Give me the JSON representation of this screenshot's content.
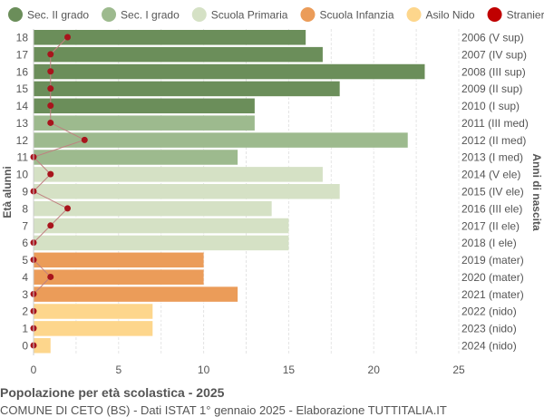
{
  "chart_data": {
    "type": "bar",
    "orientation": "horizontal",
    "title": "Popolazione per età scolastica - 2025",
    "subtitle": "COMUNE DI CETO (BS) - Dati ISTAT 1° gennaio 2025 - Elaborazione TUTTITALIA.IT",
    "ylabel": "Età alunni",
    "ylabel_right": "Anni di nascita",
    "xlim": [
      0,
      25
    ],
    "xticks": [
      0,
      5,
      10,
      15,
      20,
      25
    ],
    "grid": true,
    "legend_position": "top",
    "legend": [
      {
        "name": "Sec. II grado",
        "color": "#6b8e5a"
      },
      {
        "name": "Sec. I grado",
        "color": "#9dba8e"
      },
      {
        "name": "Scuola Primaria",
        "color": "#d5e1c5"
      },
      {
        "name": "Scuola Infanzia",
        "color": "#eb9c59"
      },
      {
        "name": "Asilo Nido",
        "color": "#fdd68c"
      },
      {
        "name": "Stranieri",
        "color": "#c00000"
      }
    ],
    "ages": [
      18,
      17,
      16,
      15,
      14,
      13,
      12,
      11,
      10,
      9,
      8,
      7,
      6,
      5,
      4,
      3,
      2,
      1,
      0
    ],
    "birth_years": [
      "2006 (V sup)",
      "2007 (IV sup)",
      "2008 (III sup)",
      "2009 (II sup)",
      "2010 (I sup)",
      "2011 (III med)",
      "2012 (II med)",
      "2013 (I med)",
      "2014 (V ele)",
      "2015 (IV ele)",
      "2016 (III ele)",
      "2017 (II ele)",
      "2018 (I ele)",
      "2019 (mater)",
      "2020 (mater)",
      "2021 (mater)",
      "2022 (nido)",
      "2023 (nido)",
      "2024 (nido)"
    ],
    "categories_group": [
      0,
      0,
      0,
      0,
      0,
      1,
      1,
      1,
      2,
      2,
      2,
      2,
      2,
      3,
      3,
      3,
      4,
      4,
      4
    ],
    "values": [
      16,
      17,
      23,
      18,
      13,
      13,
      22,
      12,
      17,
      18,
      14,
      15,
      15,
      10,
      10,
      12,
      7,
      7,
      1
    ],
    "stranieri": [
      2,
      1,
      1,
      1,
      1,
      1,
      3,
      0,
      1,
      0,
      2,
      1,
      0,
      0,
      1,
      0,
      0,
      0,
      0
    ]
  }
}
